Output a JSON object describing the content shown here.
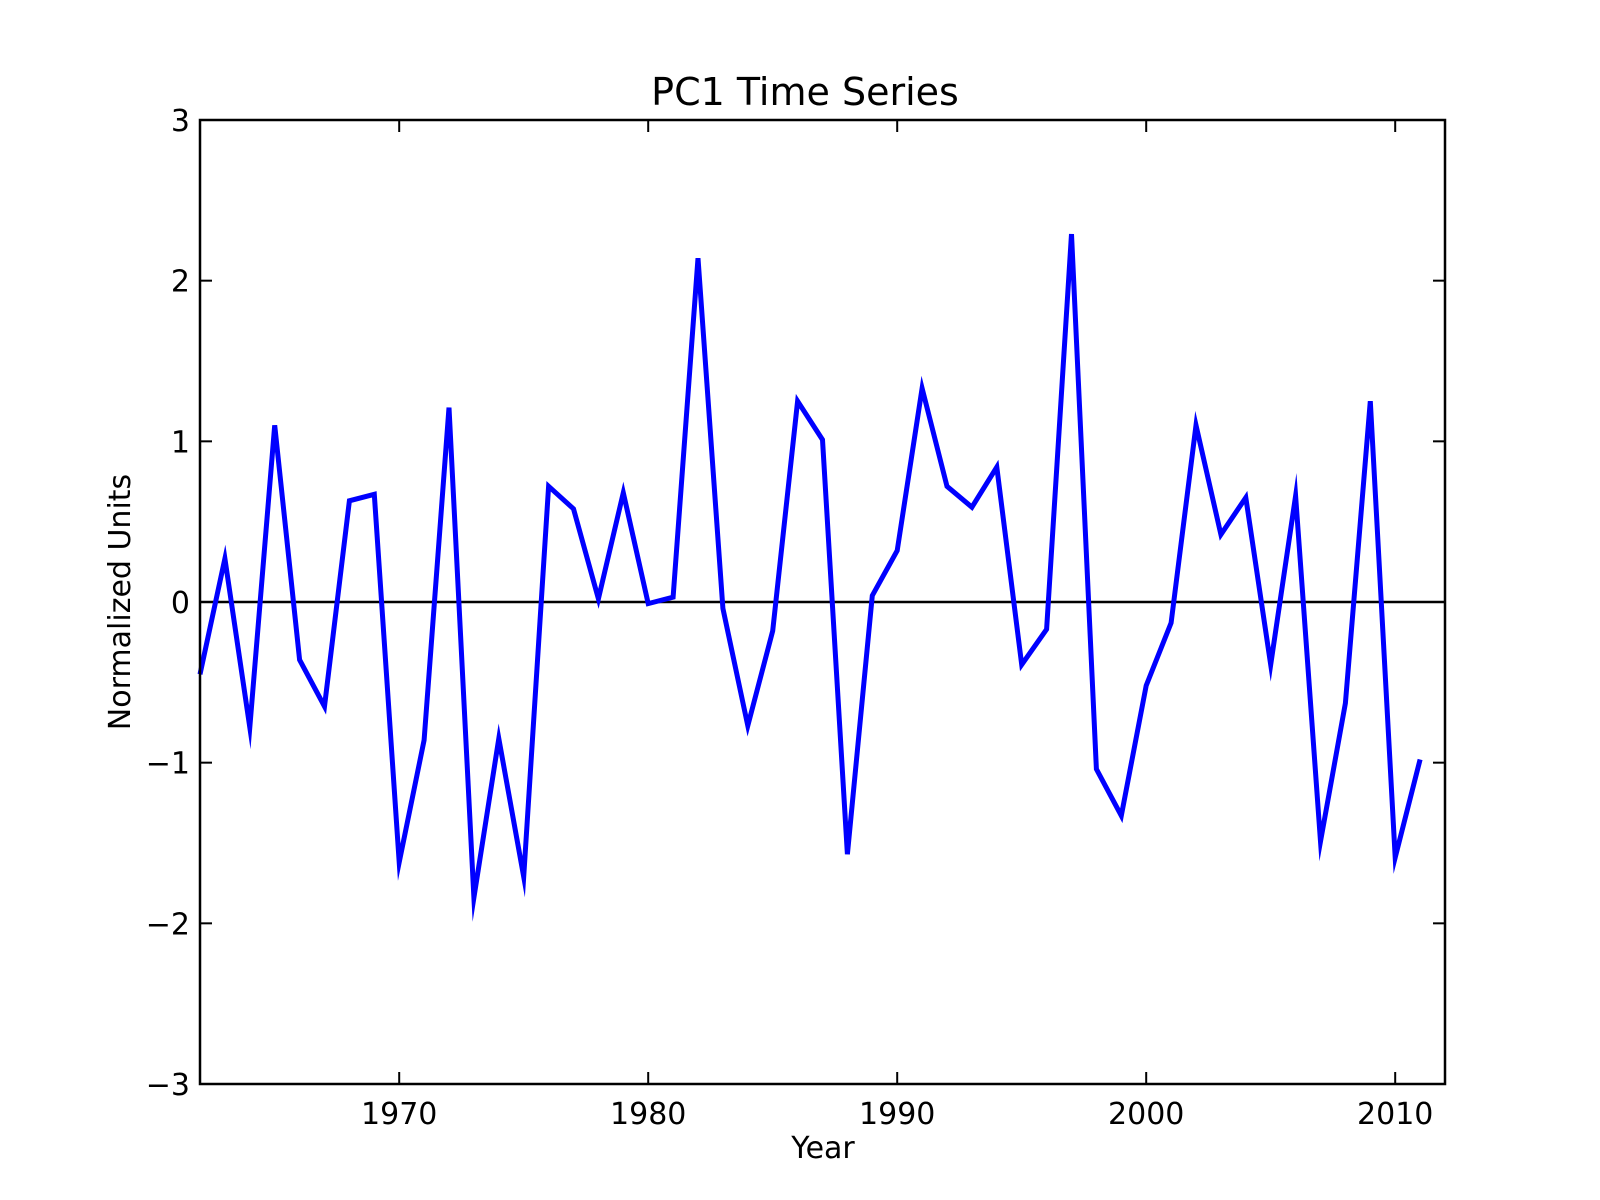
{
  "chart_data": {
    "type": "line",
    "title": "PC1 Time Series",
    "xlabel": "Year",
    "ylabel": "Normalized Units",
    "xlim": [
      1962,
      2012
    ],
    "ylim": [
      -3,
      3
    ],
    "xticks": [
      1970,
      1980,
      1990,
      2000,
      2010
    ],
    "xtick_labels": [
      "1970",
      "1980",
      "1990",
      "2000",
      "2010"
    ],
    "yticks": [
      3,
      2,
      1,
      0,
      -1,
      -2,
      -3
    ],
    "ytick_labels": [
      "3",
      "2",
      "1",
      "0",
      "−1",
      "−2",
      "−3"
    ],
    "grid": false,
    "zero_line": true,
    "series": [
      {
        "color": "#0000ff",
        "x": [
          1962,
          1963,
          1964,
          1965,
          1966,
          1967,
          1968,
          1969,
          1970,
          1971,
          1972,
          1973,
          1974,
          1975,
          1976,
          1977,
          1978,
          1979,
          1980,
          1981,
          1982,
          1983,
          1984,
          1985,
          1986,
          1987,
          1988,
          1989,
          1990,
          1991,
          1992,
          1993,
          1994,
          1995,
          1996,
          1997,
          1998,
          1999,
          2000,
          2001,
          2002,
          2003,
          2004,
          2005,
          2006,
          2007,
          2008,
          2009,
          2010,
          2011
        ],
        "y": [
          -0.45,
          0.27,
          -0.78,
          1.1,
          -0.36,
          -0.65,
          0.63,
          0.67,
          -1.62,
          -0.86,
          1.21,
          -1.84,
          -0.85,
          -1.71,
          0.72,
          0.58,
          0.02,
          0.68,
          -0.01,
          0.03,
          2.14,
          -0.04,
          -0.77,
          -0.18,
          1.25,
          1.01,
          -1.57,
          0.04,
          0.32,
          1.33,
          0.72,
          0.59,
          0.84,
          -0.39,
          -0.17,
          2.29,
          -1.04,
          -1.33,
          -0.52,
          -0.13,
          1.1,
          0.42,
          0.65,
          -0.39,
          0.66,
          -1.49,
          -0.63,
          1.25,
          -1.59,
          -0.98
        ]
      }
    ],
    "zero_line_color": "#000000"
  }
}
